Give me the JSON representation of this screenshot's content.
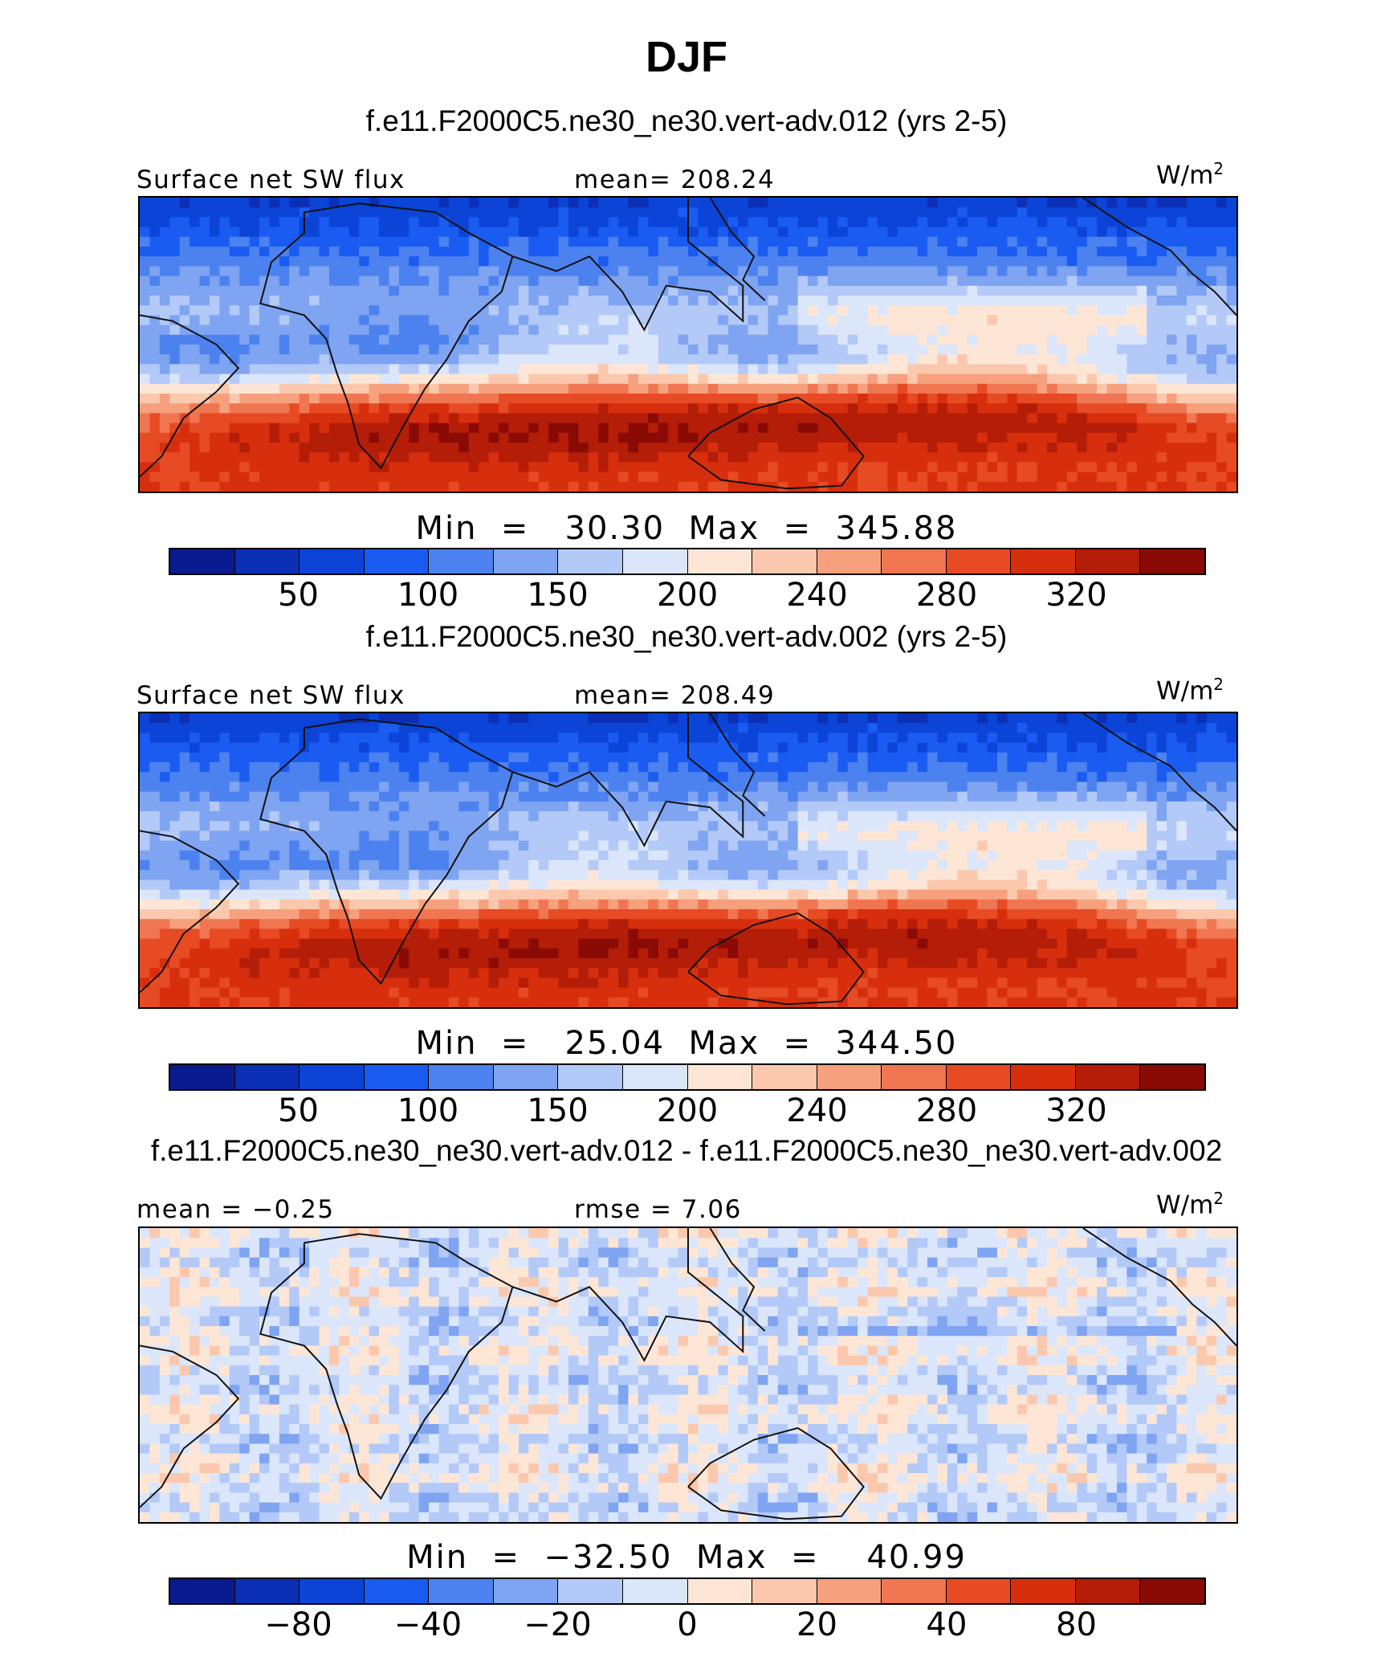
{
  "title": "DJF",
  "colors": {
    "scale": [
      "#0a1a8f",
      "#0b2fb5",
      "#0b44d6",
      "#1a5cf2",
      "#4c82ef",
      "#7ea4f2",
      "#b3c9f7",
      "#dbe6fb",
      "#fde6d6",
      "#fbc8ad",
      "#f6a07e",
      "#f07652",
      "#e74b24",
      "#d72f0d",
      "#b41d08",
      "#8a0a05"
    ],
    "land": "#111111"
  },
  "panels": [
    {
      "case": "f.e11.F2000C5.ne30_ne30.vert-adv.012 (yrs 2-5)",
      "left_label": "Surface net SW flux",
      "center_label": "mean=  208.24",
      "units": "W/m",
      "units_exp": "2",
      "minmax": "Min  =   30.30  Max  =  345.88",
      "ticks": [
        "50",
        "100",
        "150",
        "200",
        "240",
        "280",
        "320"
      ],
      "kind": "field",
      "seed": 1
    },
    {
      "case": "f.e11.F2000C5.ne30_ne30.vert-adv.002 (yrs 2-5)",
      "left_label": "Surface net SW flux",
      "center_label": "mean=  208.49",
      "units": "W/m",
      "units_exp": "2",
      "minmax": "Min  =   25.04  Max  =  344.50",
      "ticks": [
        "50",
        "100",
        "150",
        "200",
        "240",
        "280",
        "320"
      ],
      "kind": "field",
      "seed": 2
    },
    {
      "case": "f.e11.F2000C5.ne30_ne30.vert-adv.012 - f.e11.F2000C5.ne30_ne30.vert-adv.002",
      "left_label": "mean =   −0.25",
      "center_label": "rmse  =     7.06",
      "units": "W/m",
      "units_exp": "2",
      "minmax": "Min  =  −32.50  Max  =    40.99",
      "ticks": [
        "−80",
        "−40",
        "−20",
        "0",
        "20",
        "40",
        "80"
      ],
      "kind": "diff",
      "seed": 3
    }
  ]
}
